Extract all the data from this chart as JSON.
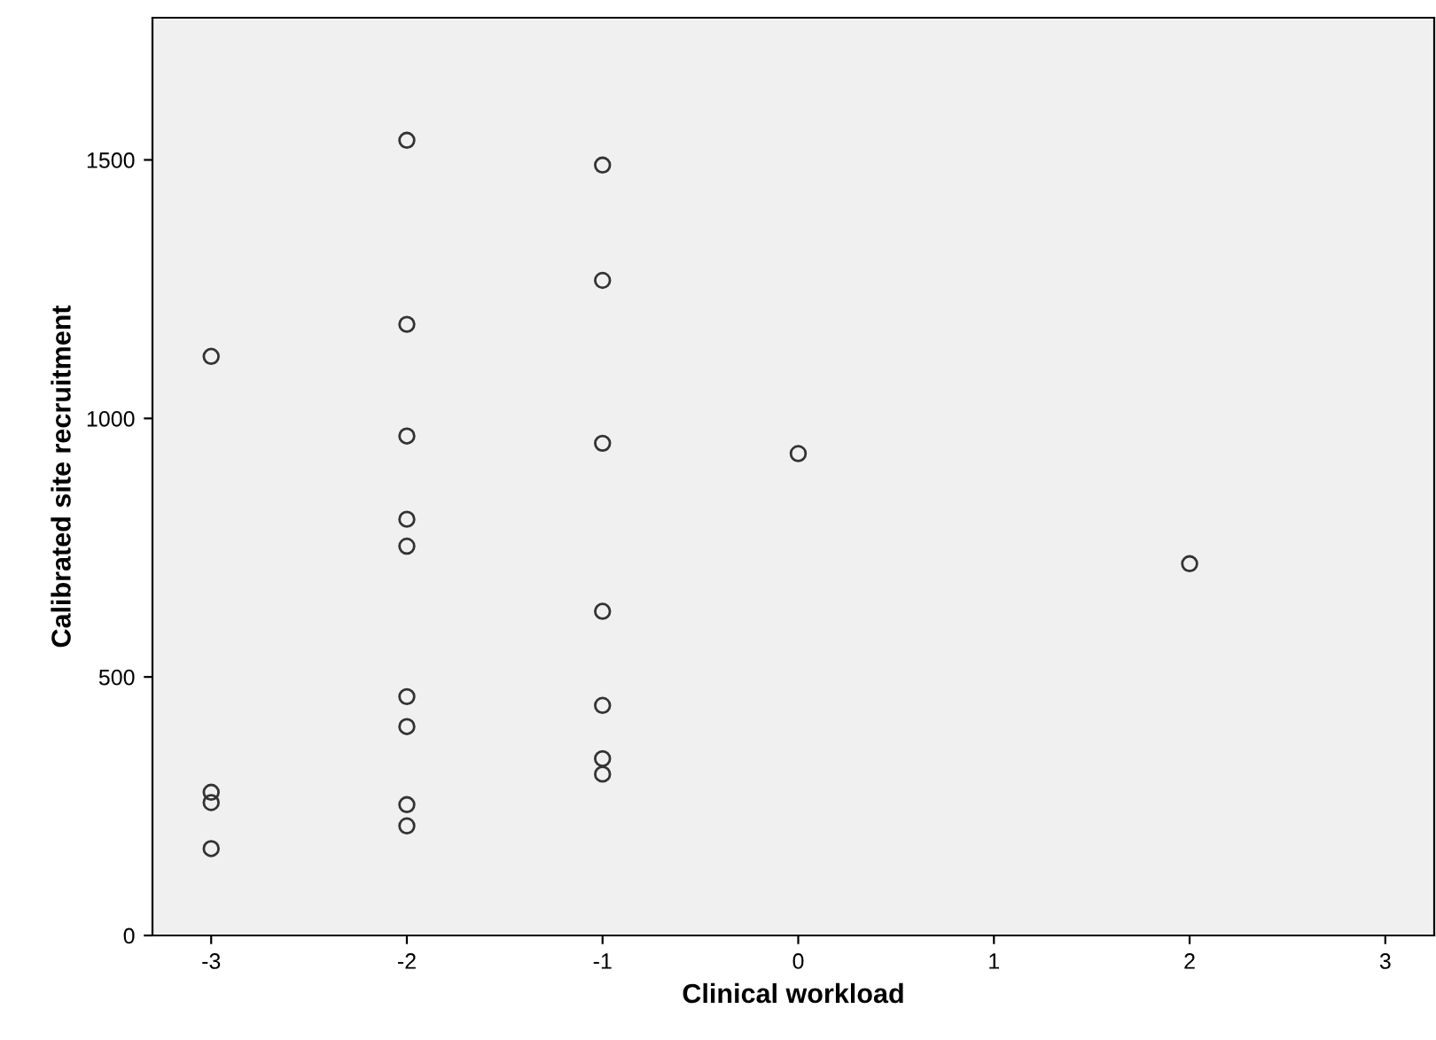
{
  "chart_data": {
    "type": "scatter",
    "xlabel": "Clinical workload",
    "ylabel": "Calibrated site recruitment",
    "x": [
      -3,
      -3,
      -3,
      -3,
      -2,
      -2,
      -2,
      -2,
      -2,
      -2,
      -2,
      -2,
      -2,
      -1,
      -1,
      -1,
      -1,
      -1,
      -1,
      -1,
      0,
      2
    ],
    "values": [
      1120,
      277,
      257,
      168,
      1538,
      1182,
      966,
      805,
      753,
      462,
      404,
      253,
      212,
      1490,
      1267,
      952,
      627,
      445,
      342,
      312,
      932,
      719
    ],
    "color": "#333333",
    "marker": "circle",
    "grid": false,
    "xlim": [
      -3.3,
      3.25
    ],
    "ylim": [
      0,
      1775
    ],
    "xticks": [
      -3,
      -2,
      -1,
      0,
      1,
      2,
      3
    ],
    "yticks": [
      0,
      500,
      1000,
      1500
    ]
  }
}
